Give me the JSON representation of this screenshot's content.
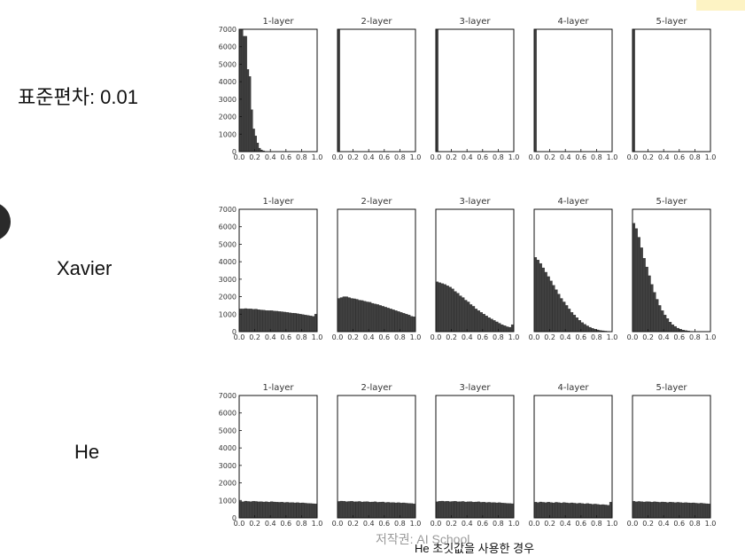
{
  "row_labels": [
    "표준편차: 0.01",
    "Xavier",
    "He"
  ],
  "watermark": "저작권: AI School",
  "caption": "He 초깃값을 사용한 경우",
  "bar_color": "#404040",
  "chart_data": [
    {
      "type": "bar",
      "group": "표준편차: 0.01",
      "title": "1-layer",
      "xlim": [
        0,
        1
      ],
      "ylim": [
        0,
        7000
      ],
      "x": [
        0.0,
        0.025,
        0.05,
        0.075,
        0.1,
        0.125,
        0.15,
        0.175,
        0.2,
        0.225,
        0.25,
        0.275,
        0.3,
        0.325
      ],
      "values": [
        7000,
        7000,
        6600,
        6600,
        4700,
        4300,
        2400,
        1300,
        900,
        500,
        200,
        100,
        50,
        20
      ],
      "xticks": [
        "0.0",
        "0.2",
        "0.4",
        "0.6",
        "0.8",
        "1.0"
      ],
      "yticks": [
        "0",
        "1000",
        "2000",
        "3000",
        "4000",
        "5000",
        "6000",
        "7000"
      ]
    },
    {
      "type": "bar",
      "group": "표준편차: 0.01",
      "title": "2-layer",
      "xlim": [
        0,
        1
      ],
      "ylim": [
        0,
        7000
      ],
      "x": [
        0.0
      ],
      "values": [
        7000
      ],
      "xticks": [
        "0.0",
        "0.2",
        "0.4",
        "0.6",
        "0.8",
        "1.0"
      ]
    },
    {
      "type": "bar",
      "group": "표준편차: 0.01",
      "title": "3-layer",
      "xlim": [
        0,
        1
      ],
      "ylim": [
        0,
        7000
      ],
      "x": [
        0.0
      ],
      "values": [
        7000
      ],
      "xticks": [
        "0.0",
        "0.2",
        "0.4",
        "0.6",
        "0.8",
        "1.0"
      ]
    },
    {
      "type": "bar",
      "group": "표준편차: 0.01",
      "title": "4-layer",
      "xlim": [
        0,
        1
      ],
      "ylim": [
        0,
        7000
      ],
      "x": [
        0.0
      ],
      "values": [
        7000
      ],
      "xticks": [
        "0.0",
        "0.2",
        "0.4",
        "0.6",
        "0.8",
        "1.0"
      ]
    },
    {
      "type": "bar",
      "group": "표준편차: 0.01",
      "title": "5-layer",
      "xlim": [
        0,
        1
      ],
      "ylim": [
        0,
        7000
      ],
      "x": [
        0.0
      ],
      "values": [
        7000
      ],
      "xticks": [
        "0.0",
        "0.2",
        "0.4",
        "0.6",
        "0.8",
        "1.0"
      ]
    },
    {
      "type": "bar",
      "group": "Xavier",
      "title": "1-layer",
      "xlim": [
        0,
        1
      ],
      "ylim": [
        0,
        7000
      ],
      "x": [
        0.0,
        0.033,
        0.067,
        0.1,
        0.133,
        0.167,
        0.2,
        0.233,
        0.267,
        0.3,
        0.333,
        0.367,
        0.4,
        0.433,
        0.467,
        0.5,
        0.533,
        0.567,
        0.6,
        0.633,
        0.667,
        0.7,
        0.733,
        0.767,
        0.8,
        0.833,
        0.867,
        0.9,
        0.933,
        0.967
      ],
      "values": [
        1300,
        1300,
        1320,
        1300,
        1300,
        1280,
        1290,
        1260,
        1240,
        1230,
        1210,
        1200,
        1200,
        1180,
        1170,
        1150,
        1140,
        1120,
        1100,
        1080,
        1060,
        1050,
        1030,
        1000,
        980,
        950,
        930,
        900,
        870,
        1000
      ],
      "xticks": [
        "0.0",
        "0.2",
        "0.4",
        "0.6",
        "0.8",
        "1.0"
      ],
      "yticks": [
        "0",
        "1000",
        "2000",
        "3000",
        "4000",
        "5000",
        "6000",
        "7000"
      ]
    },
    {
      "type": "bar",
      "group": "Xavier",
      "title": "2-layer",
      "xlim": [
        0,
        1
      ],
      "ylim": [
        0,
        7000
      ],
      "x": [
        0.0,
        0.033,
        0.067,
        0.1,
        0.133,
        0.167,
        0.2,
        0.233,
        0.267,
        0.3,
        0.333,
        0.367,
        0.4,
        0.433,
        0.467,
        0.5,
        0.533,
        0.567,
        0.6,
        0.633,
        0.667,
        0.7,
        0.733,
        0.767,
        0.8,
        0.833,
        0.867,
        0.9,
        0.933,
        0.967
      ],
      "values": [
        1900,
        1950,
        2000,
        2000,
        1950,
        1900,
        1880,
        1850,
        1800,
        1780,
        1740,
        1700,
        1680,
        1620,
        1580,
        1550,
        1500,
        1450,
        1400,
        1350,
        1300,
        1250,
        1200,
        1150,
        1100,
        1050,
        1000,
        950,
        880,
        850
      ],
      "xticks": [
        "0.0",
        "0.2",
        "0.4",
        "0.6",
        "0.8",
        "1.0"
      ]
    },
    {
      "type": "bar",
      "group": "Xavier",
      "title": "3-layer",
      "xlim": [
        0,
        1
      ],
      "ylim": [
        0,
        7000
      ],
      "x": [
        0.0,
        0.033,
        0.067,
        0.1,
        0.133,
        0.167,
        0.2,
        0.233,
        0.267,
        0.3,
        0.333,
        0.367,
        0.4,
        0.433,
        0.467,
        0.5,
        0.533,
        0.567,
        0.6,
        0.633,
        0.667,
        0.7,
        0.733,
        0.767,
        0.8,
        0.833,
        0.867,
        0.9,
        0.933,
        0.967
      ],
      "values": [
        2850,
        2800,
        2750,
        2700,
        2620,
        2550,
        2450,
        2300,
        2200,
        2050,
        1950,
        1800,
        1700,
        1550,
        1450,
        1300,
        1200,
        1100,
        1000,
        900,
        800,
        720,
        640,
        560,
        480,
        400,
        340,
        280,
        250,
        400
      ],
      "xticks": [
        "0.0",
        "0.2",
        "0.4",
        "0.6",
        "0.8",
        "1.0"
      ]
    },
    {
      "type": "bar",
      "group": "Xavier",
      "title": "4-layer",
      "xlim": [
        0,
        1
      ],
      "ylim": [
        0,
        7000
      ],
      "x": [
        0.0,
        0.033,
        0.067,
        0.1,
        0.133,
        0.167,
        0.2,
        0.233,
        0.267,
        0.3,
        0.333,
        0.367,
        0.4,
        0.433,
        0.467,
        0.5,
        0.533,
        0.567,
        0.6,
        0.633,
        0.667,
        0.7,
        0.733,
        0.767,
        0.8,
        0.833,
        0.867,
        0.9,
        0.933,
        0.967
      ],
      "values": [
        4250,
        4100,
        3900,
        3650,
        3400,
        3150,
        2900,
        2650,
        2400,
        2150,
        1900,
        1700,
        1500,
        1300,
        1100,
        950,
        800,
        650,
        520,
        420,
        330,
        250,
        190,
        140,
        100,
        70,
        50,
        30,
        20,
        10
      ],
      "xticks": [
        "0.0",
        "0.2",
        "0.4",
        "0.6",
        "0.8",
        "1.0"
      ]
    },
    {
      "type": "bar",
      "group": "Xavier",
      "title": "5-layer",
      "xlim": [
        0,
        1
      ],
      "ylim": [
        0,
        7000
      ],
      "x": [
        0.0,
        0.033,
        0.067,
        0.1,
        0.133,
        0.167,
        0.2,
        0.233,
        0.267,
        0.3,
        0.333,
        0.367,
        0.4,
        0.433,
        0.467,
        0.5,
        0.533,
        0.567,
        0.6,
        0.633,
        0.667,
        0.7,
        0.733,
        0.767,
        0.8,
        0.833,
        0.867,
        0.9,
        0.933,
        0.967
      ],
      "values": [
        6200,
        5900,
        5400,
        4800,
        4200,
        3700,
        3200,
        2700,
        2250,
        1850,
        1500,
        1200,
        950,
        750,
        550,
        400,
        300,
        200,
        140,
        90,
        60,
        40,
        20,
        10,
        5,
        0,
        0,
        0,
        0,
        0
      ],
      "xticks": [
        "0.0",
        "0.2",
        "0.4",
        "0.6",
        "0.8",
        "1.0"
      ]
    },
    {
      "type": "bar",
      "group": "He",
      "title": "1-layer",
      "xlim": [
        0,
        1
      ],
      "ylim": [
        0,
        7000
      ],
      "x": [
        0.0,
        0.033,
        0.067,
        0.1,
        0.133,
        0.167,
        0.2,
        0.233,
        0.267,
        0.3,
        0.333,
        0.367,
        0.4,
        0.433,
        0.467,
        0.5,
        0.533,
        0.567,
        0.6,
        0.633,
        0.667,
        0.7,
        0.733,
        0.767,
        0.8,
        0.833,
        0.867,
        0.9,
        0.933,
        0.967
      ],
      "values": [
        950,
        920,
        960,
        940,
        930,
        950,
        940,
        920,
        930,
        910,
        920,
        900,
        930,
        910,
        900,
        890,
        900,
        880,
        890,
        870,
        880,
        860,
        870,
        850,
        860,
        840,
        830,
        820,
        810,
        800
      ],
      "xticks": [
        "0.0",
        "0.2",
        "0.4",
        "0.6",
        "0.8",
        "1.0"
      ],
      "yticks": [
        "0",
        "1000",
        "2000",
        "3000",
        "4000",
        "5000",
        "6000",
        "7000"
      ]
    },
    {
      "type": "bar",
      "group": "He",
      "title": "2-layer",
      "xlim": [
        0,
        1
      ],
      "ylim": [
        0,
        7000
      ],
      "x": [
        0.0,
        0.033,
        0.067,
        0.1,
        0.133,
        0.167,
        0.2,
        0.233,
        0.267,
        0.3,
        0.333,
        0.367,
        0.4,
        0.433,
        0.467,
        0.5,
        0.533,
        0.567,
        0.6,
        0.633,
        0.667,
        0.7,
        0.733,
        0.767,
        0.8,
        0.833,
        0.867,
        0.9,
        0.933,
        0.967
      ],
      "values": [
        940,
        960,
        950,
        930,
        940,
        950,
        920,
        930,
        940,
        910,
        920,
        930,
        900,
        910,
        920,
        890,
        900,
        910,
        880,
        890,
        870,
        880,
        860,
        870,
        850,
        860,
        840,
        830,
        820,
        800
      ],
      "xticks": [
        "0.0",
        "0.2",
        "0.4",
        "0.6",
        "0.8",
        "1.0"
      ]
    },
    {
      "type": "bar",
      "group": "He",
      "title": "3-layer",
      "xlim": [
        0,
        1
      ],
      "ylim": [
        0,
        7000
      ],
      "x": [
        0.0,
        0.033,
        0.067,
        0.1,
        0.133,
        0.167,
        0.2,
        0.233,
        0.267,
        0.3,
        0.333,
        0.367,
        0.4,
        0.433,
        0.467,
        0.5,
        0.533,
        0.567,
        0.6,
        0.633,
        0.667,
        0.7,
        0.733,
        0.767,
        0.8,
        0.833,
        0.867,
        0.9,
        0.933,
        0.967
      ],
      "values": [
        920,
        950,
        960,
        940,
        950,
        930,
        940,
        950,
        920,
        930,
        940,
        910,
        920,
        930,
        900,
        910,
        920,
        890,
        900,
        880,
        890,
        870,
        880,
        860,
        870,
        850,
        840,
        830,
        820,
        810
      ],
      "xticks": [
        "0.0",
        "0.2",
        "0.4",
        "0.6",
        "0.8",
        "1.0"
      ]
    },
    {
      "type": "bar",
      "group": "He",
      "title": "4-layer",
      "xlim": [
        0,
        1
      ],
      "ylim": [
        0,
        7000
      ],
      "x": [
        0.0,
        0.033,
        0.067,
        0.1,
        0.133,
        0.167,
        0.2,
        0.233,
        0.267,
        0.3,
        0.333,
        0.367,
        0.4,
        0.433,
        0.467,
        0.5,
        0.533,
        0.567,
        0.6,
        0.633,
        0.667,
        0.7,
        0.733,
        0.767,
        0.8,
        0.833,
        0.867,
        0.9,
        0.933,
        0.967
      ],
      "values": [
        900,
        880,
        910,
        890,
        870,
        900,
        880,
        860,
        890,
        870,
        850,
        880,
        860,
        840,
        860,
        840,
        820,
        840,
        820,
        800,
        820,
        800,
        780,
        790,
        770,
        750,
        760,
        740,
        720,
        900
      ],
      "xticks": [
        "0.0",
        "0.2",
        "0.4",
        "0.6",
        "0.8",
        "1.0"
      ]
    },
    {
      "type": "bar",
      "group": "He",
      "title": "5-layer",
      "xlim": [
        0,
        1
      ],
      "ylim": [
        0,
        7000
      ],
      "x": [
        0.0,
        0.033,
        0.067,
        0.1,
        0.133,
        0.167,
        0.2,
        0.233,
        0.267,
        0.3,
        0.333,
        0.367,
        0.4,
        0.433,
        0.467,
        0.5,
        0.533,
        0.567,
        0.6,
        0.633,
        0.667,
        0.7,
        0.733,
        0.767,
        0.8,
        0.833,
        0.867,
        0.9,
        0.933,
        0.967
      ],
      "values": [
        950,
        920,
        940,
        930,
        910,
        930,
        920,
        900,
        920,
        910,
        890,
        910,
        900,
        880,
        900,
        890,
        870,
        890,
        880,
        860,
        870,
        860,
        850,
        860,
        840,
        830,
        840,
        820,
        810,
        800
      ],
      "xticks": [
        "0.0",
        "0.2",
        "0.4",
        "0.6",
        "0.8",
        "1.0"
      ]
    }
  ]
}
